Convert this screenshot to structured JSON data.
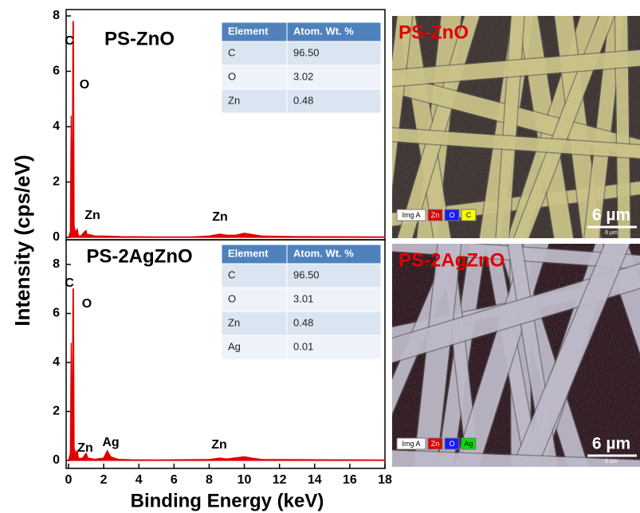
{
  "chart_data": [
    {
      "type": "area",
      "title": "PS-ZnO",
      "ylabel": "Intensity (cps/eV)",
      "color": "#e00000",
      "x": [
        0,
        0.1,
        0.15,
        0.2,
        0.25,
        0.28,
        0.32,
        0.4,
        0.5,
        0.55,
        0.6,
        0.7,
        0.9,
        1.0,
        1.05,
        1.2,
        1.5,
        2,
        3,
        5,
        7,
        8,
        8.6,
        9,
        9.5,
        10,
        10.3,
        11,
        13,
        18
      ],
      "values": [
        0,
        0.2,
        4.4,
        0.5,
        7.8,
        7.8,
        0.4,
        0.2,
        0.3,
        0.1,
        0.05,
        0.05,
        0.2,
        0.25,
        0.1,
        0.1,
        0.05,
        0.05,
        0.03,
        0.02,
        0.02,
        0.05,
        0.12,
        0.08,
        0.08,
        0.15,
        0.12,
        0.05,
        0.03,
        0.02
      ],
      "xlim": [
        0,
        18
      ],
      "ylim": [
        0,
        8
      ],
      "yticks": [
        0,
        2,
        4,
        6,
        8
      ],
      "annotations": [
        "C",
        "O",
        "Zn",
        "Zn"
      ],
      "table": {
        "columns": [
          "Element",
          "Atom. Wt. %"
        ],
        "rows": [
          [
            "C",
            "96.50"
          ],
          [
            "O",
            "3.02"
          ],
          [
            "Zn",
            "0.48"
          ]
        ]
      }
    },
    {
      "type": "area",
      "title": "PS-2AgZnO",
      "xlabel": "Binding Energy (keV)",
      "color": "#e00000",
      "x": [
        0,
        0.1,
        0.15,
        0.2,
        0.25,
        0.28,
        0.32,
        0.4,
        0.5,
        0.55,
        0.6,
        0.8,
        1.0,
        1.1,
        1.5,
        2.0,
        2.2,
        2.4,
        2.8,
        3.5,
        5,
        8,
        8.6,
        9,
        10,
        10.4,
        11,
        14,
        18
      ],
      "values": [
        0,
        0.3,
        4.8,
        0.6,
        7.0,
        7.0,
        0.5,
        0.3,
        0.4,
        0.15,
        0.08,
        0.1,
        0.3,
        0.1,
        0.05,
        0.1,
        0.4,
        0.15,
        0.05,
        0.03,
        0.02,
        0.04,
        0.1,
        0.06,
        0.15,
        0.1,
        0.04,
        0.03,
        0.02
      ],
      "xlim": [
        0,
        18
      ],
      "ylim": [
        0,
        8
      ],
      "xticks": [
        0,
        2,
        4,
        6,
        8,
        10,
        12,
        14,
        16,
        18
      ],
      "yticks": [
        0,
        2,
        4,
        6,
        8
      ],
      "annotations": [
        "C",
        "O",
        "Zn",
        "Ag",
        "Zn"
      ],
      "table": {
        "columns": [
          "Element",
          "Atom. Wt. %"
        ],
        "rows": [
          [
            "C",
            "96.50"
          ],
          [
            "O",
            "3.01"
          ],
          [
            "Zn",
            "0.48"
          ],
          [
            "Ag",
            "0.01"
          ]
        ]
      }
    }
  ],
  "images": [
    {
      "label": "PS-ZnO",
      "legend": [
        {
          "text": "Img A",
          "color": "#ffffff"
        },
        {
          "text": "Zn",
          "color": "#e00000"
        },
        {
          "text": "O",
          "color": "#1a1aff"
        },
        {
          "text": "C",
          "color": "#ffff00"
        }
      ],
      "scale": "6 µm",
      "scale_small": "6 µm",
      "fiber_color": "#d8cf8a"
    },
    {
      "label": "PS-2AgZnO",
      "legend": [
        {
          "text": "Img A",
          "color": "#ffffff"
        },
        {
          "text": "Zn",
          "color": "#e00000"
        },
        {
          "text": "O",
          "color": "#1a1aff"
        },
        {
          "text": "Ag",
          "color": "#00e000"
        }
      ],
      "scale": "6 µm",
      "scale_small": "6 µm",
      "fiber_color": "#c9c4d6"
    }
  ]
}
